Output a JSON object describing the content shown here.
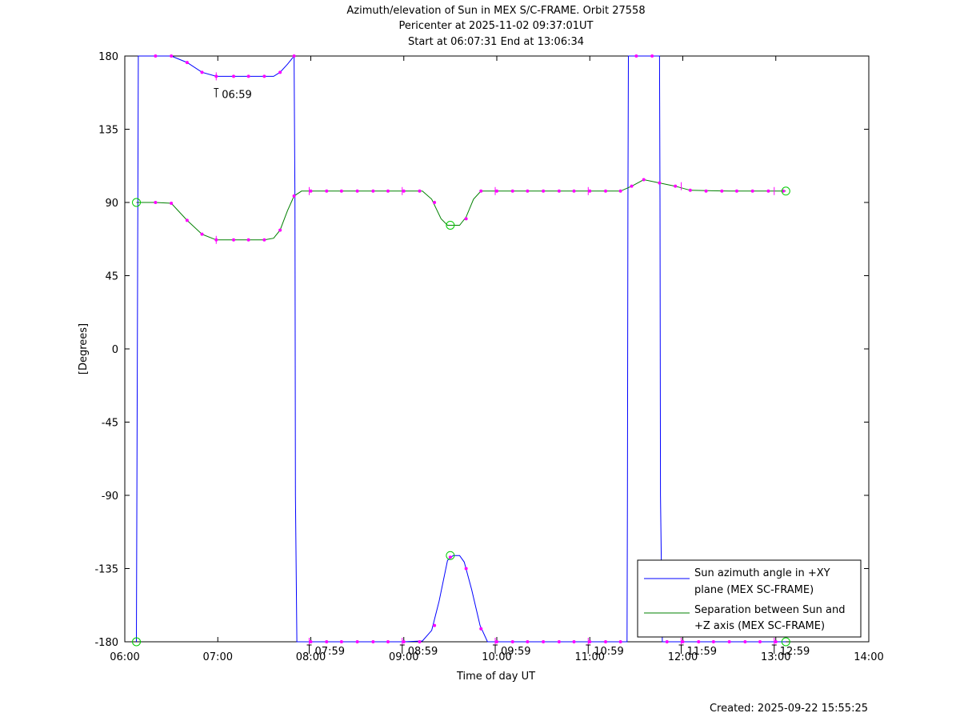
{
  "chart_data": {
    "type": "line",
    "title_lines": [
      "Azimuth/elevation of Sun in MEX S/C-FRAME.  Orbit 27558",
      "Pericenter at 2025-11-02 09:37:01UT",
      "Start at 06:07:31 End at 13:06:34"
    ],
    "xlabel": "Time of day UT",
    "ylabel": "[Degrees]",
    "xlim": [
      6.0,
      14.0
    ],
    "ylim": [
      -180,
      180
    ],
    "x_ticks": [
      6,
      7,
      8,
      9,
      10,
      11,
      12,
      13,
      14
    ],
    "x_tick_labels": [
      "06:00",
      "07:00",
      "08:00",
      "09:00",
      "10:00",
      "11:00",
      "12:00",
      "13:00",
      "14:00"
    ],
    "y_ticks": [
      180,
      135,
      90,
      45,
      0,
      -45,
      -90,
      -135,
      -180
    ],
    "y_tick_labels": [
      "180",
      "135",
      "90",
      "45",
      "0",
      "-45",
      "-90",
      "-135",
      "-180"
    ],
    "grid": false,
    "legend_position": "bottom-right",
    "annotations": [
      {
        "x": 6.983,
        "y": 163,
        "text": "06:59"
      },
      {
        "x": 7.983,
        "y": -180,
        "text": "07:59"
      },
      {
        "x": 8.983,
        "y": -180,
        "text": "08:59"
      },
      {
        "x": 9.983,
        "y": -180,
        "text": "09:59"
      },
      {
        "x": 10.983,
        "y": -180,
        "text": "10:59"
      },
      {
        "x": 11.983,
        "y": -180,
        "text": "11:59"
      },
      {
        "x": 12.983,
        "y": -180,
        "text": "12:59"
      }
    ],
    "series": [
      {
        "name": "Sun azimuth angle in +XY plane (MEX SC-FRAME)",
        "label_lines": [
          "Sun azimuth angle in +XY",
          "plane (MEX SC-FRAME)"
        ],
        "color": "#0000ff",
        "points": [
          [
            6.125,
            -180
          ],
          [
            6.13,
            -90
          ],
          [
            6.135,
            0
          ],
          [
            6.14,
            90
          ],
          [
            6.145,
            180
          ],
          [
            6.167,
            180
          ],
          [
            6.33,
            180
          ],
          [
            6.5,
            180
          ],
          [
            6.67,
            176
          ],
          [
            6.83,
            170
          ],
          [
            6.983,
            167.5
          ],
          [
            7.17,
            167.5
          ],
          [
            7.33,
            167.5
          ],
          [
            7.5,
            167.5
          ],
          [
            7.6,
            167.5
          ],
          [
            7.67,
            170
          ],
          [
            7.75,
            175
          ],
          [
            7.82,
            180
          ],
          [
            7.83,
            90
          ],
          [
            7.835,
            -90
          ],
          [
            7.85,
            -180
          ],
          [
            8.0,
            -180
          ],
          [
            8.5,
            -180
          ],
          [
            9.0,
            -180
          ],
          [
            9.2,
            -179.5
          ],
          [
            9.3,
            -173
          ],
          [
            9.38,
            -155
          ],
          [
            9.47,
            -130
          ],
          [
            9.53,
            -127
          ],
          [
            9.6,
            -127
          ],
          [
            9.65,
            -131
          ],
          [
            9.73,
            -148
          ],
          [
            9.82,
            -170
          ],
          [
            9.9,
            -180
          ],
          [
            10.0,
            -180
          ],
          [
            10.5,
            -180
          ],
          [
            11.0,
            -180
          ],
          [
            11.4,
            -180
          ],
          [
            11.405,
            -90
          ],
          [
            11.41,
            90
          ],
          [
            11.415,
            180
          ],
          [
            11.5,
            180
          ],
          [
            11.6,
            180
          ],
          [
            11.75,
            180
          ],
          [
            11.755,
            90
          ],
          [
            11.76,
            -90
          ],
          [
            11.78,
            -180
          ],
          [
            12.0,
            -180
          ],
          [
            12.5,
            -180
          ],
          [
            13.108,
            -180
          ]
        ]
      },
      {
        "name": "Separation between Sun and +Z axis (MEX SC-FRAME)",
        "label_lines": [
          "Separation between Sun and",
          "+Z axis (MEX SC-FRAME)"
        ],
        "color": "#008000",
        "points": [
          [
            6.125,
            90
          ],
          [
            6.17,
            90
          ],
          [
            6.33,
            90
          ],
          [
            6.5,
            89.5
          ],
          [
            6.67,
            79
          ],
          [
            6.83,
            70.5
          ],
          [
            6.983,
            67
          ],
          [
            7.17,
            67
          ],
          [
            7.33,
            67
          ],
          [
            7.5,
            67
          ],
          [
            7.6,
            68
          ],
          [
            7.67,
            73
          ],
          [
            7.75,
            85
          ],
          [
            7.82,
            94
          ],
          [
            7.9,
            97
          ],
          [
            8.0,
            97
          ],
          [
            8.5,
            97
          ],
          [
            9.0,
            97
          ],
          [
            9.2,
            97
          ],
          [
            9.3,
            92
          ],
          [
            9.4,
            80
          ],
          [
            9.47,
            76
          ],
          [
            9.53,
            76
          ],
          [
            9.6,
            76
          ],
          [
            9.67,
            81
          ],
          [
            9.75,
            92
          ],
          [
            9.83,
            97
          ],
          [
            10.0,
            97
          ],
          [
            10.5,
            97
          ],
          [
            11.0,
            97
          ],
          [
            11.33,
            97
          ],
          [
            11.45,
            100
          ],
          [
            11.58,
            104
          ],
          [
            11.75,
            102
          ],
          [
            11.92,
            100
          ],
          [
            12.08,
            97.5
          ],
          [
            12.5,
            97
          ],
          [
            13.108,
            97
          ]
        ]
      }
    ],
    "markers": {
      "color": "#ff00ff",
      "azimuth_dots": [
        [
          6.33,
          180
        ],
        [
          6.5,
          180
        ],
        [
          6.67,
          176
        ],
        [
          6.83,
          170
        ],
        [
          6.983,
          167.5
        ],
        [
          7.17,
          167.5
        ],
        [
          7.33,
          167.5
        ],
        [
          7.5,
          167.5
        ],
        [
          7.67,
          170
        ],
        [
          7.82,
          180
        ],
        [
          8.0,
          -180
        ],
        [
          8.17,
          -180
        ],
        [
          8.33,
          -180
        ],
        [
          8.5,
          -180
        ],
        [
          8.67,
          -180
        ],
        [
          8.83,
          -180
        ],
        [
          9.0,
          -180
        ],
        [
          9.17,
          -180
        ],
        [
          9.33,
          -170
        ],
        [
          9.5,
          -128
        ],
        [
          9.67,
          -135
        ],
        [
          9.83,
          -172
        ],
        [
          10.0,
          -180
        ],
        [
          10.17,
          -180
        ],
        [
          10.33,
          -180
        ],
        [
          10.5,
          -180
        ],
        [
          10.67,
          -180
        ],
        [
          10.83,
          -180
        ],
        [
          11.0,
          -180
        ],
        [
          11.17,
          -180
        ],
        [
          11.33,
          -180
        ],
        [
          11.5,
          180
        ],
        [
          11.67,
          180
        ],
        [
          11.83,
          -180
        ],
        [
          12.0,
          -180
        ],
        [
          12.17,
          -180
        ],
        [
          12.33,
          -180
        ],
        [
          12.5,
          -180
        ],
        [
          12.67,
          -180
        ],
        [
          12.83,
          -180
        ],
        [
          13.0,
          -180
        ]
      ],
      "separation_dots": [
        [
          6.33,
          90
        ],
        [
          6.5,
          89.5
        ],
        [
          6.67,
          79
        ],
        [
          6.83,
          70.5
        ],
        [
          6.983,
          67
        ],
        [
          7.17,
          67
        ],
        [
          7.33,
          67
        ],
        [
          7.5,
          67
        ],
        [
          7.67,
          73
        ],
        [
          7.82,
          94
        ],
        [
          8.0,
          97
        ],
        [
          8.17,
          97
        ],
        [
          8.33,
          97
        ],
        [
          8.5,
          97
        ],
        [
          8.67,
          97
        ],
        [
          8.83,
          97
        ],
        [
          9.0,
          97
        ],
        [
          9.17,
          97
        ],
        [
          9.33,
          90
        ],
        [
          9.67,
          80
        ],
        [
          9.83,
          97
        ],
        [
          10.0,
          97
        ],
        [
          10.17,
          97
        ],
        [
          10.33,
          97
        ],
        [
          10.5,
          97
        ],
        [
          10.67,
          97
        ],
        [
          10.83,
          97
        ],
        [
          11.0,
          97
        ],
        [
          11.17,
          97
        ],
        [
          11.33,
          97
        ],
        [
          11.45,
          100
        ],
        [
          11.58,
          104
        ],
        [
          11.75,
          102
        ],
        [
          11.92,
          100
        ],
        [
          12.08,
          97.5
        ],
        [
          12.25,
          97
        ],
        [
          12.42,
          97
        ],
        [
          12.58,
          97
        ],
        [
          12.75,
          97
        ],
        [
          12.92,
          97
        ],
        [
          13.08,
          97
        ]
      ],
      "hour_ticks": [
        [
          6.983,
          167.5
        ],
        [
          6.983,
          67
        ],
        [
          7.983,
          97
        ],
        [
          8.983,
          97
        ],
        [
          9.983,
          97
        ],
        [
          10.983,
          97
        ],
        [
          11.983,
          100
        ],
        [
          12.983,
          97
        ],
        [
          7.983,
          -180
        ],
        [
          8.983,
          -180
        ],
        [
          9.983,
          -180
        ],
        [
          10.983,
          -180
        ],
        [
          11.983,
          -180
        ],
        [
          12.983,
          -180
        ]
      ]
    },
    "circle_markers": {
      "color": "#00cc00",
      "points": [
        [
          6.125,
          90
        ],
        [
          6.125,
          -180
        ],
        [
          9.5,
          76
        ],
        [
          9.5,
          -127
        ],
        [
          13.108,
          97
        ],
        [
          13.108,
          -180
        ]
      ]
    }
  },
  "footer": {
    "created": "Created: 2025-09-22 15:55:25"
  }
}
